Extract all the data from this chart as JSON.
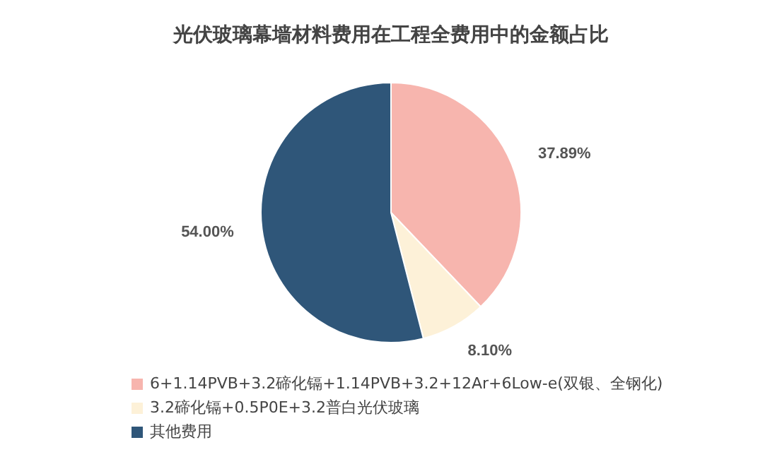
{
  "chart_data": {
    "type": "pie",
    "title": "光伏玻璃幕墙材料费用在工程全费用中的金额占比",
    "categories": [
      "6+1.14PVB+3.2碲化镉+1.14PVB+3.2+12Ar+6Low-e(双银、全钢化)",
      "3.2碲化镉+0.5P0E+3.2普白光伏玻璃",
      "其他费用"
    ],
    "values": [
      37.89,
      8.1,
      54.0
    ],
    "value_labels": [
      "37.89%",
      "8.10%",
      "54.00%"
    ],
    "colors": [
      "#f7b5ae",
      "#fdf1d8",
      "#2f5679"
    ],
    "legend": "bottom left"
  }
}
